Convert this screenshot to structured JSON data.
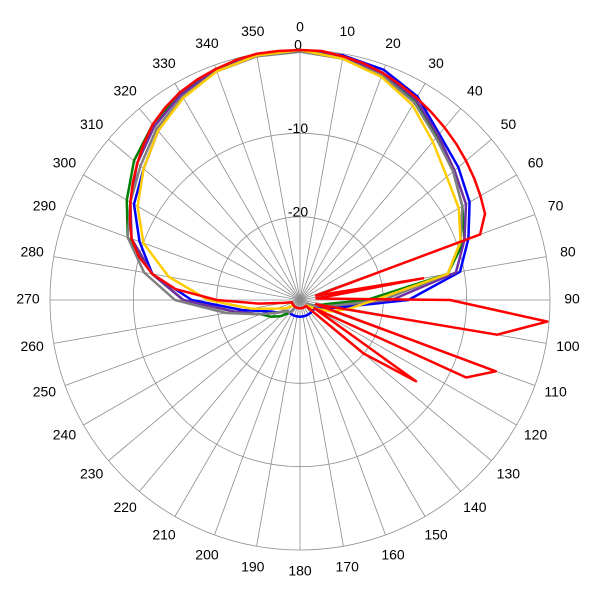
{
  "chart_data": {
    "type": "polar",
    "theta": [
      0,
      10,
      20,
      30,
      40,
      50,
      60,
      70,
      80,
      90,
      100,
      110,
      120,
      130,
      140,
      150,
      160,
      170,
      180,
      190,
      200,
      210,
      220,
      230,
      240,
      250,
      260,
      270,
      280,
      290,
      300,
      310,
      320,
      330,
      340,
      350
    ],
    "thetaticks": [
      0,
      10,
      20,
      30,
      40,
      50,
      60,
      70,
      80,
      90,
      100,
      110,
      120,
      130,
      140,
      150,
      160,
      170,
      180,
      190,
      200,
      210,
      220,
      230,
      240,
      250,
      260,
      270,
      280,
      290,
      300,
      310,
      320,
      330,
      340,
      350
    ],
    "rlim": [
      -30,
      0
    ],
    "rticks": [
      -20,
      -10,
      0
    ],
    "grid": true,
    "series": [
      {
        "color": "#008000",
        "values": [
          0,
          -0.5,
          -1.2,
          -2.5,
          -4.5,
          -6,
          -7.5,
          -9,
          -12,
          -22,
          -27,
          -28,
          -29,
          -29,
          -29,
          -29,
          -29,
          -29,
          -29,
          -29,
          -29,
          -29,
          -28,
          -27,
          -26,
          -25,
          -22,
          -16,
          -12,
          -8,
          -6,
          -4,
          -2.5,
          -1.2,
          -0.5,
          -0.1
        ]
      },
      {
        "color": "#0000ff",
        "values": [
          0,
          -0.2,
          -0.6,
          -1.8,
          -4,
          -5.2,
          -6.5,
          -8.5,
          -10.5,
          -17,
          -25,
          -27,
          -28,
          -28,
          -28,
          -28,
          -28,
          -28,
          -28,
          -28,
          -28,
          -28,
          -28,
          -28,
          -27,
          -26,
          -23,
          -17,
          -12,
          -9.5,
          -7,
          -5.5,
          -3.5,
          -1.8,
          -0.6,
          -0.1
        ]
      },
      {
        "color": "#7030a0",
        "values": [
          0,
          -0.4,
          -1,
          -2.2,
          -4.2,
          -5.8,
          -7,
          -9,
          -11,
          -19,
          -26,
          -28,
          -29,
          -29,
          -29,
          -29,
          -29,
          -29,
          -29,
          -29,
          -29,
          -29,
          -28,
          -28,
          -27,
          -25,
          -22,
          -16,
          -12,
          -8.5,
          -6.5,
          -4.5,
          -2.8,
          -1.5,
          -0.6,
          -0.1
        ]
      },
      {
        "color": "#808080",
        "values": [
          -0.2,
          -0.6,
          -1.3,
          -2.6,
          -4.6,
          -6,
          -7.5,
          -9.5,
          -12,
          -20,
          -26,
          -28,
          -29,
          -29,
          -29,
          -29,
          -29,
          -29,
          -29,
          -29,
          -29,
          -29,
          -28,
          -28,
          -27,
          -25,
          -21,
          -15,
          -11,
          -8,
          -6.5,
          -5,
          -3.2,
          -1.8,
          -0.8,
          -0.3
        ]
      },
      {
        "color": "#ffcc00",
        "values": [
          0,
          -0.6,
          -1.5,
          -3,
          -5.2,
          -7,
          -8,
          -9.5,
          -12,
          -21,
          -24,
          -26,
          -28,
          -29,
          -29,
          -29,
          -29,
          -29,
          -29,
          -29,
          -29,
          -29,
          -29,
          -29,
          -28,
          -27,
          -24,
          -19,
          -14,
          -10,
          -7.5,
          -5.5,
          -3.5,
          -2,
          -0.8,
          -0.2
        ]
      },
      {
        "color": "#ff0000",
        "theta": [
          0,
          5,
          10,
          15,
          20,
          25,
          30,
          35,
          40,
          45,
          50,
          55,
          60,
          65,
          70,
          75,
          80,
          85,
          90,
          95,
          100,
          105,
          110,
          115,
          120,
          125,
          130,
          135,
          140,
          150,
          160,
          170,
          180,
          190,
          200,
          210,
          220,
          230,
          240,
          250,
          255,
          260,
          265,
          270,
          275,
          280,
          285,
          290,
          295,
          300,
          305,
          310,
          315,
          320,
          325,
          330,
          335,
          340,
          345,
          350,
          355
        ],
        "values": [
          0,
          0,
          -0.3,
          -0.6,
          -1,
          -1.5,
          -2,
          -2.5,
          -3,
          -3.5,
          -4,
          -4.5,
          -5,
          -5.5,
          -7,
          -28,
          -15,
          -28,
          -12,
          -0.2,
          -6,
          -28,
          -5,
          -8,
          -28,
          -13,
          -20,
          -29,
          -29,
          -29,
          -29,
          -29,
          -29,
          -29,
          -29,
          -29,
          -29,
          -29,
          -29,
          -29,
          -29,
          -28,
          -25,
          -20,
          -15,
          -12,
          -10,
          -8.5,
          -7.5,
          -6.5,
          -5.5,
          -4.5,
          -3.5,
          -2.5,
          -1.8,
          -1.2,
          -0.8,
          -0.5,
          -0.2,
          0,
          0
        ]
      }
    ]
  }
}
